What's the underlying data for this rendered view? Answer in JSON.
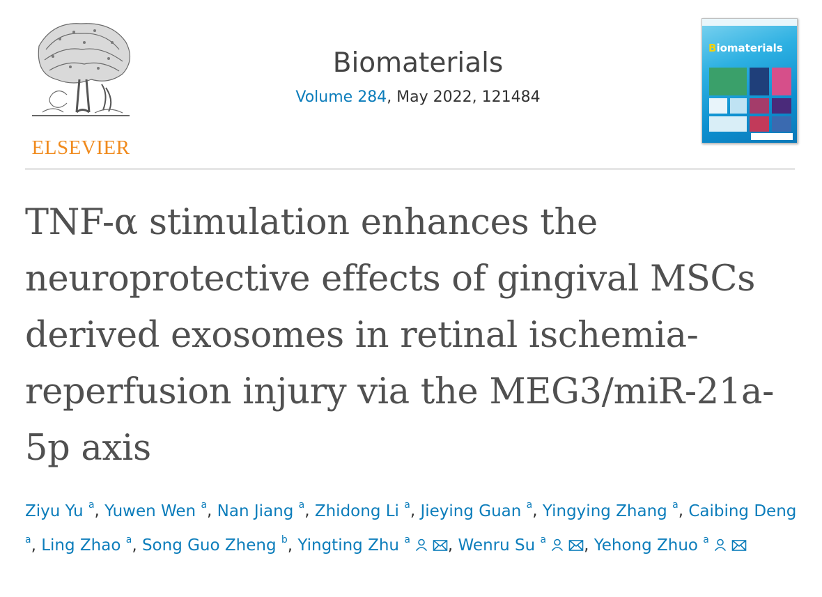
{
  "publisher": {
    "name": "ELSEVIER",
    "logo_icon": "elsevier-tree-logo",
    "color": "#f08a1c"
  },
  "journal": {
    "title": "Biomaterials",
    "volume_link": "Volume 284",
    "meta_rest": ", May 2022, 121484"
  },
  "cover": {
    "title_first": "B",
    "title_rest": "iomaterials",
    "icon": "journal-cover-image"
  },
  "article": {
    "title": "TNF-α stimulation enhances the neuroprotective effects of gingival MSCs derived exosomes in retinal ischemia-reperfusion injury via the MEG3/miR-21a-5p axis"
  },
  "authors": [
    {
      "name": "Ziyu Yu",
      "aff": "a"
    },
    {
      "name": "Yuwen Wen",
      "aff": "a"
    },
    {
      "name": "Nan Jiang",
      "aff": "a"
    },
    {
      "name": "Zhidong Li",
      "aff": "a"
    },
    {
      "name": "Jieying Guan",
      "aff": "a"
    },
    {
      "name": "Yingying Zhang",
      "aff": "a"
    },
    {
      "name": "Caibing Deng",
      "aff": "a"
    },
    {
      "name": "Ling Zhao",
      "aff": "a"
    },
    {
      "name": "Song Guo Zheng",
      "aff": "b"
    },
    {
      "name": "Yingting Zhu",
      "aff": "a",
      "icons": [
        "person-icon",
        "mail-icon"
      ]
    },
    {
      "name": "Wenru Su",
      "aff": "a",
      "icons": [
        "person-icon",
        "mail-icon"
      ]
    },
    {
      "name": "Yehong Zhuo",
      "aff": "a",
      "icons": [
        "person-icon",
        "mail-icon"
      ]
    }
  ],
  "separator": ", ",
  "colors": {
    "link": "#0c7dbb",
    "title": "#505050",
    "divider": "#e6e6e6"
  }
}
